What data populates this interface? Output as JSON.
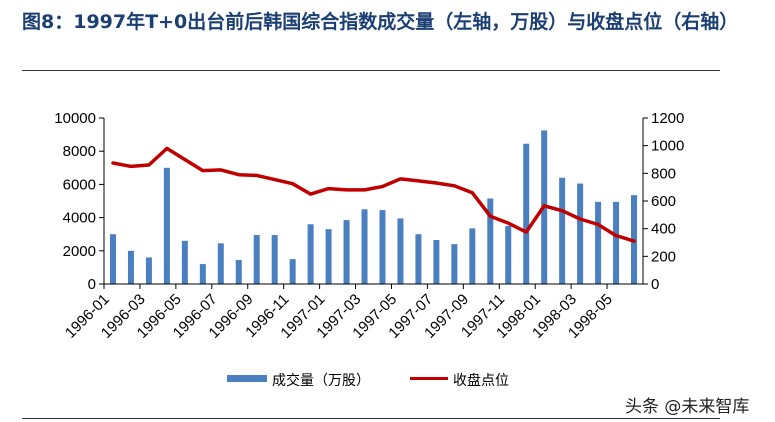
{
  "title": "图8：1997年T+0出台前后韩国综合指数成交量（左轴，万股）与收盘点位（右轴）",
  "watermark": "头条 @未来智库",
  "colors": {
    "bar": "#4a7fc0",
    "line": "#c00000",
    "title": "#1c3f73"
  },
  "chart_data": {
    "type": "bar+line",
    "x": [
      "1996-01",
      "1996-02",
      "1996-03",
      "1996-04",
      "1996-05",
      "1996-06",
      "1996-07",
      "1996-08",
      "1996-09",
      "1996-10",
      "1996-11",
      "1996-12",
      "1997-01",
      "1997-02",
      "1997-03",
      "1997-04",
      "1997-05",
      "1997-06",
      "1997-07",
      "1997-08",
      "1997-09",
      "1997-10",
      "1997-11",
      "1997-12",
      "1998-01",
      "1998-02",
      "1998-03",
      "1998-04",
      "1998-05",
      "1998-06"
    ],
    "x_tick_labels": [
      "1996-01",
      "1996-03",
      "1996-05",
      "1996-07",
      "1996-09",
      "1996-11",
      "1997-01",
      "1997-03",
      "1997-05",
      "1997-07",
      "1997-09",
      "1997-11",
      "1998-01",
      "1998-03",
      "1998-05"
    ],
    "series": [
      {
        "name": "成交量（万股）",
        "type": "bar",
        "axis": "left",
        "values": [
          3000,
          2000,
          1600,
          7000,
          2600,
          1200,
          2450,
          1450,
          2950,
          2950,
          1500,
          3600,
          3300,
          3850,
          4500,
          4450,
          3950,
          3000,
          2650,
          2400,
          3350,
          5150,
          3500,
          8450,
          9250,
          6400,
          6050,
          4950,
          4950,
          5350
        ]
      },
      {
        "name": "收盘点位",
        "type": "line",
        "axis": "right",
        "values": [
          875,
          850,
          860,
          980,
          900,
          820,
          825,
          790,
          785,
          755,
          725,
          650,
          690,
          680,
          680,
          705,
          760,
          745,
          730,
          710,
          660,
          490,
          440,
          375,
          565,
          530,
          470,
          430,
          350,
          310
        ]
      }
    ],
    "y_left": {
      "ylim": [
        0,
        10000
      ],
      "ticks": [
        0,
        2000,
        4000,
        6000,
        8000,
        10000
      ]
    },
    "y_right": {
      "ylim": [
        0,
        1200
      ],
      "ticks": [
        0,
        200,
        400,
        600,
        800,
        1000,
        1200
      ]
    },
    "legend": {
      "position": "bottom",
      "entries": [
        "成交量（万股）",
        "收盘点位"
      ]
    },
    "grid": false
  }
}
